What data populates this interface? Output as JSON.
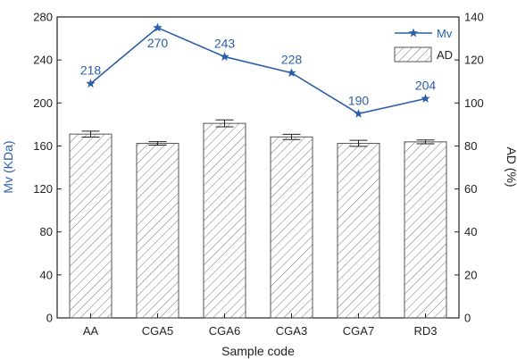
{
  "chart_data": {
    "type": "bar",
    "categories": [
      "AA",
      "CGA5",
      "CGA6",
      "CGA3",
      "CGA7",
      "RD3"
    ],
    "xlabel": "Sample code",
    "ylabel_left": "Mv (KDa)",
    "ylabel_right": "AD (%)",
    "ylim_left": [
      0,
      280
    ],
    "ylim_right": [
      0,
      140
    ],
    "yticks_left": [
      "0",
      "40",
      "80",
      "120",
      "160",
      "200",
      "240",
      "280"
    ],
    "yticks_right": [
      "0",
      "20",
      "40",
      "60",
      "80",
      "100",
      "120",
      "140"
    ],
    "legend_position": "top-right",
    "grid": false,
    "series": [
      {
        "name": "Mv",
        "type": "line",
        "axis": "left",
        "marker": "star",
        "values": [
          218,
          270,
          243,
          228,
          190,
          204
        ],
        "labels": [
          "218",
          "270",
          "243",
          "228",
          "190",
          "204"
        ],
        "color": "#2b5fa8"
      },
      {
        "name": "AD",
        "type": "bar",
        "axis": "right",
        "pattern": "diagonal-hatch",
        "values": [
          85.5,
          81.2,
          90.5,
          84.2,
          81.2,
          81.9
        ],
        "errors": [
          1.4,
          0.8,
          1.6,
          1.2,
          1.4,
          0.9
        ],
        "color": "#555555"
      }
    ],
    "colors": {
      "mv": "#2b5fa8",
      "axis": "#222222",
      "hatch": "#777777"
    }
  }
}
